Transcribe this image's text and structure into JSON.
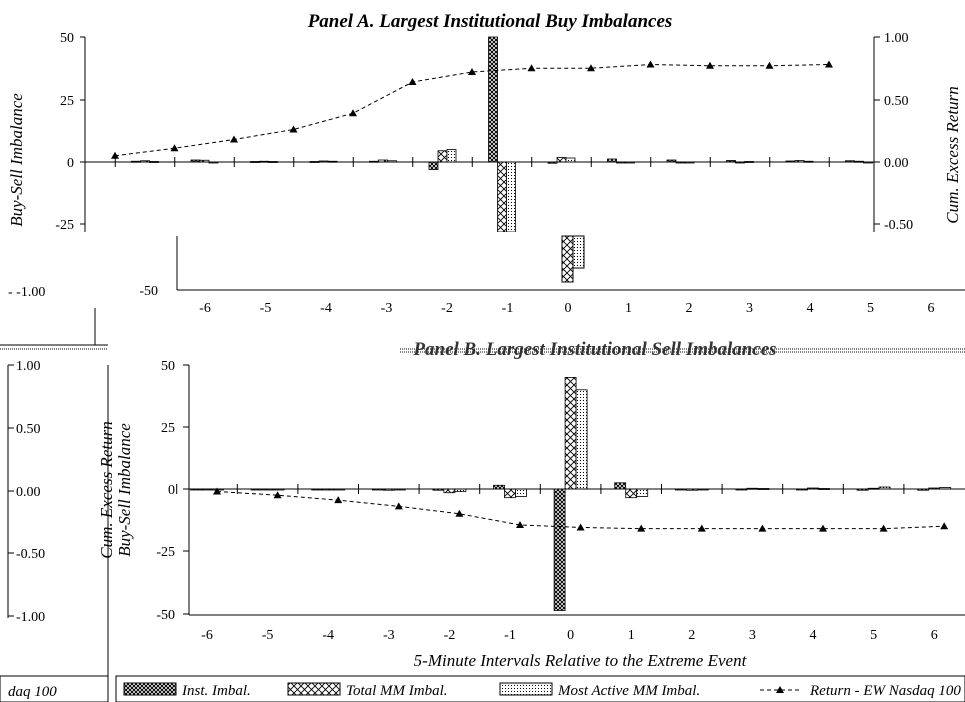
{
  "chart_data": [
    {
      "type": "bar",
      "title": "Panel A. Largest Institutional Buy Imbalances",
      "ylabel": "Buy-Sell Imbalance",
      "y2label": "Cum. Excess Return",
      "ylim": [
        -50,
        50
      ],
      "y2lim": [
        -1.0,
        1.0
      ],
      "yticks": [
        "50",
        "25",
        "0",
        "-25",
        "-50"
      ],
      "y2ticks": [
        "1.00",
        "0.50",
        "0.00",
        "-0.50",
        "-1.00"
      ],
      "x": [
        -6,
        -5,
        -4,
        -3,
        -2,
        -1,
        0,
        1,
        2,
        3,
        4,
        5,
        6
      ],
      "xticks": [
        "-6",
        "-5",
        "-4",
        "-3",
        "-2",
        "-1",
        "0",
        "1",
        "2",
        "3",
        "4",
        "5",
        "6"
      ],
      "series": [
        {
          "name": "Inst. Imbal.",
          "kind": "bar",
          "values": [
            0.3,
            0.8,
            0.2,
            0.2,
            0.3,
            -3.0,
            50,
            -0.5,
            1.2,
            0.8,
            0.6,
            0.4,
            0.5
          ]
        },
        {
          "name": "Total MM Imbal.",
          "kind": "bar",
          "values": [
            0.5,
            0.7,
            0.3,
            0.4,
            0.8,
            4.5,
            -46,
            1.8,
            -0.2,
            -0.4,
            -0.3,
            0.6,
            0.3
          ]
        },
        {
          "name": "Most Active MM Imbal.",
          "kind": "bar",
          "values": [
            0.2,
            -0.4,
            0.2,
            0.3,
            0.5,
            5.0,
            -42,
            1.6,
            -0.3,
            -0.2,
            0.2,
            0.3,
            -0.2
          ]
        },
        {
          "name": "Return - EW Nasdaq 100",
          "kind": "line",
          "values": [
            0.05,
            0.11,
            0.18,
            0.26,
            0.39,
            0.64,
            0.72,
            0.75,
            0.75,
            0.78,
            0.77,
            0.77,
            0.78
          ]
        }
      ]
    },
    {
      "type": "bar",
      "title": "Panel B. Largest Institutional Sell Imbalances",
      "ylabel": "Buy-Sell Imbalance",
      "y2label": "Cum. Excess Return",
      "xlabel": "5-Minute Intervals Relative to the Extreme Event",
      "ylim": [
        -50,
        50
      ],
      "y2lim": [
        -1.0,
        1.0
      ],
      "yticks": [
        "50",
        "25",
        "0",
        "-25",
        "-50"
      ],
      "y2ticks": [
        "1.00",
        "0.50",
        "0.00",
        "-0.50",
        "-1.00"
      ],
      "x": [
        -6,
        -5,
        -4,
        -3,
        -2,
        -1,
        0,
        1,
        2,
        3,
        4,
        5,
        6
      ],
      "xticks": [
        "-6",
        "-5",
        "-4",
        "-3",
        "-2",
        "-1",
        "0",
        "1",
        "2",
        "3",
        "4",
        "5",
        "6"
      ],
      "series": [
        {
          "name": "Inst. Imbal.",
          "kind": "bar",
          "values": [
            -0.2,
            -0.3,
            -0.4,
            -0.3,
            -0.5,
            1.5,
            -49,
            2.5,
            -0.3,
            -0.3,
            -0.3,
            -0.5,
            -0.5
          ]
        },
        {
          "name": "Total MM Imbal.",
          "kind": "bar",
          "values": [
            -0.3,
            -0.2,
            -0.2,
            -0.5,
            -1.5,
            -3.5,
            45,
            -3.5,
            -0.5,
            0.3,
            0.4,
            0.3,
            0.4
          ]
        },
        {
          "name": "Most Active MM Imbal.",
          "kind": "bar",
          "values": [
            -0.2,
            -0.2,
            -0.3,
            -0.4,
            -1.0,
            -3.0,
            40,
            -3.0,
            -0.3,
            0.2,
            0.2,
            0.8,
            0.6
          ]
        },
        {
          "name": "Return - EW Nasdaq 100",
          "kind": "line",
          "values": [
            -0.02,
            -0.05,
            -0.09,
            -0.14,
            -0.2,
            -0.29,
            -0.31,
            -0.32,
            -0.32,
            -0.32,
            -0.32,
            -0.32,
            -0.3
          ]
        }
      ]
    }
  ],
  "legend": [
    "Inst. Imbal.",
    "Total MM Imbal.",
    "Most Active MM Imbal.",
    "Return - EW Nasdaq 100"
  ],
  "fragments": {
    "left_tick_top": "- -1.00",
    "left_axis_ticks": [
      "1.00",
      "0.50",
      "0.00",
      "-0.50",
      "-1.00"
    ],
    "legend_fragment": "daq 100",
    "a_bottom_x_ticks": [
      "-6",
      "-5",
      "-4",
      "-3",
      "-2",
      "-1",
      "0",
      "1",
      "2",
      "3",
      "4",
      "5",
      "6"
    ],
    "a_bottom_y_tick": "-50"
  }
}
